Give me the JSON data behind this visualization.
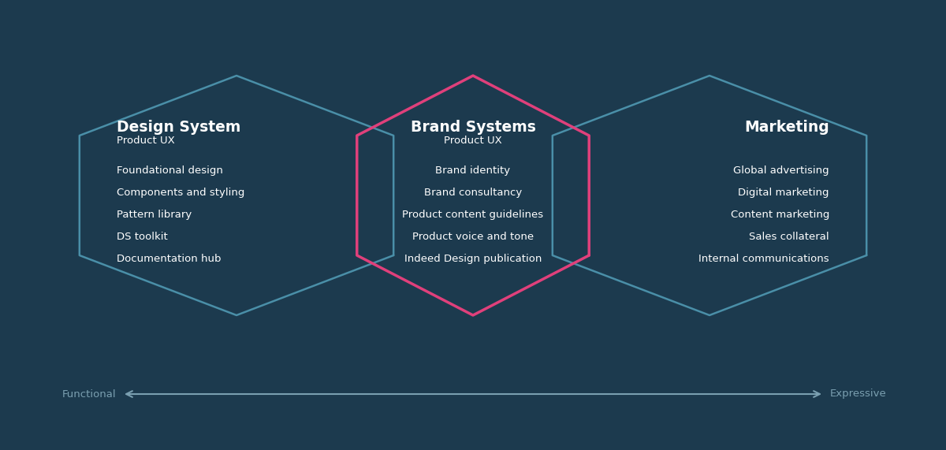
{
  "bg_color": "#1c3a4e",
  "hex_color_outer": "#4a8fa8",
  "hex_color_middle": "#e0407b",
  "text_color_white": "#ffffff",
  "text_color_muted": "#7a9fb0",
  "arrow_color": "#7a9fb0",
  "left_title": "Design System",
  "left_subtitle": "Product UX",
  "left_items": [
    "Foundational design",
    "Components and styling",
    "Pattern library",
    "DS toolkit",
    "Documentation hub"
  ],
  "middle_title": "Brand Systems",
  "middle_subtitle": "Product UX",
  "middle_items": [
    "Brand identity",
    "Brand consultancy",
    "Product content guidelines",
    "Product voice and tone",
    "Indeed Design publication"
  ],
  "right_title": "Marketing",
  "right_items": [
    "Global advertising",
    "Digital marketing",
    "Content marketing",
    "Sales collateral",
    "Internal communications"
  ],
  "arrow_label_left": "Functional",
  "arrow_label_right": "Expressive"
}
